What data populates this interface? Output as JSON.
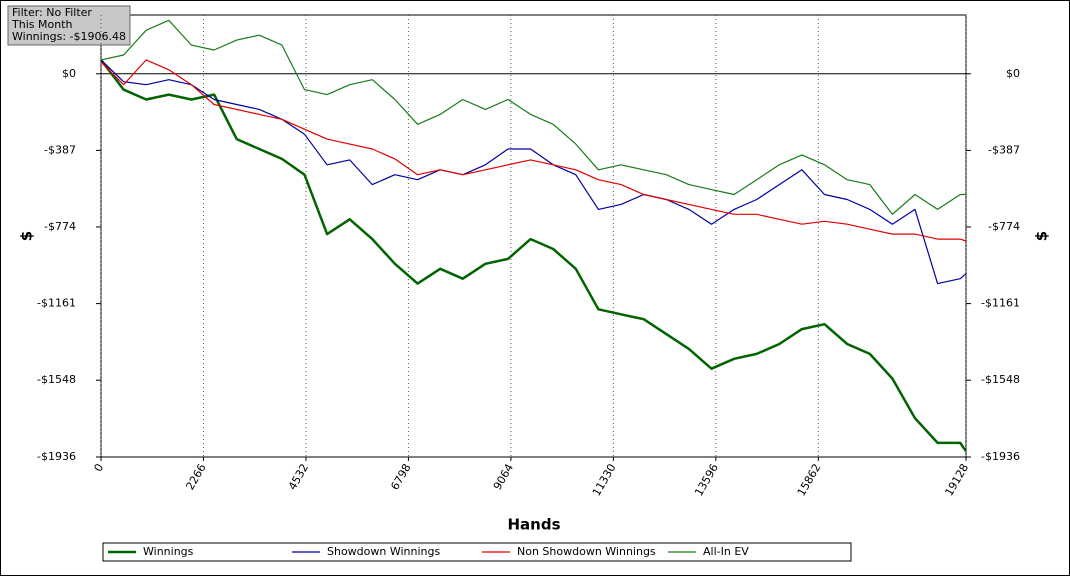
{
  "chart_data": {
    "type": "line",
    "info": [
      "Filter: No Filter",
      "This Month",
      "Winnings: -$1906.48"
    ],
    "xlabel": "Hands",
    "ylabel": "$",
    "y2label": "$",
    "x": [
      0,
      500,
      1000,
      1500,
      2000,
      2500,
      3000,
      3500,
      4000,
      4500,
      5000,
      5500,
      6000,
      6500,
      7000,
      7500,
      8000,
      8500,
      9000,
      9500,
      10000,
      10500,
      11000,
      11500,
      12000,
      12500,
      13000,
      13500,
      14000,
      14500,
      15000,
      15500,
      16000,
      16500,
      17000,
      17500,
      18000,
      18500,
      19000,
      19128
    ],
    "series": [
      {
        "name": "Winnings",
        "color": "#006400",
        "values": [
          70,
          -80,
          -130,
          -105,
          -130,
          -105,
          -330,
          -380,
          -430,
          -510,
          -810,
          -735,
          -835,
          -960,
          -1060,
          -985,
          -1035,
          -960,
          -935,
          -835,
          -885,
          -985,
          -1190,
          -1215,
          -1240,
          -1315,
          -1390,
          -1490,
          -1440,
          -1415,
          -1365,
          -1290,
          -1265,
          -1365,
          -1415,
          -1540,
          -1740,
          -1865,
          -1865,
          -1906.48
        ]
      },
      {
        "name": "Showdown Winnings",
        "color": "#0000a0",
        "values": [
          70,
          -40,
          -55,
          -30,
          -55,
          -130,
          -155,
          -180,
          -230,
          -305,
          -460,
          -435,
          -560,
          -510,
          -535,
          -485,
          -510,
          -460,
          -380,
          -380,
          -460,
          -510,
          -685,
          -660,
          -610,
          -635,
          -685,
          -760,
          -685,
          -635,
          -560,
          -485,
          -610,
          -635,
          -685,
          -760,
          -685,
          -1060,
          -1035,
          -1010
        ]
      },
      {
        "name": "Non Showdown Winnings",
        "color": "#e00000",
        "values": [
          60,
          -55,
          70,
          20,
          -55,
          -155,
          -180,
          -205,
          -230,
          -280,
          -330,
          -355,
          -380,
          -430,
          -510,
          -485,
          -510,
          -485,
          -460,
          -435,
          -460,
          -485,
          -535,
          -560,
          -610,
          -635,
          -660,
          -685,
          -710,
          -710,
          -735,
          -760,
          -745,
          -760,
          -785,
          -810,
          -810,
          -835,
          -835,
          -845
        ]
      },
      {
        "name": "All-In EV",
        "color": "#1a7a1a",
        "values": [
          70,
          95,
          220,
          270,
          145,
          120,
          170,
          195,
          145,
          -80,
          -105,
          -55,
          -30,
          -130,
          -255,
          -205,
          -130,
          -180,
          -130,
          -205,
          -255,
          -355,
          -485,
          -460,
          -485,
          -510,
          -560,
          -585,
          -610,
          -535,
          -460,
          -410,
          -460,
          -535,
          -560,
          -710,
          -610,
          -685,
          -610,
          -610
        ]
      }
    ],
    "xlim": [
      0,
      19128
    ],
    "xticks": [
      0,
      2266,
      4532,
      6798,
      9064,
      11330,
      13596,
      15862,
      19128
    ],
    "ylim": [
      -1936,
      297
    ],
    "yticks": [
      {
        "value": 0,
        "label": "$0"
      },
      {
        "value": -387,
        "label": "-$387"
      },
      {
        "value": -774,
        "label": "-$774"
      },
      {
        "value": -1161,
        "label": "-$1161"
      },
      {
        "value": -1548,
        "label": "-$1548"
      },
      {
        "value": -1936,
        "label": "-$1936"
      }
    ],
    "grid": true
  }
}
